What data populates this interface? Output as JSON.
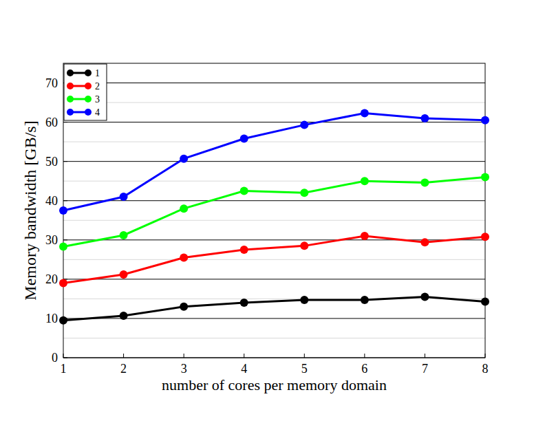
{
  "chart_data": {
    "type": "line",
    "x_label": "number of cores per memory domain",
    "y_label": "Memory bandwidth [GB/s]",
    "x": [
      1,
      2,
      3,
      4,
      5,
      6,
      7,
      8
    ],
    "series": [
      {
        "name": "1",
        "color": "#000000",
        "values": [
          9.5,
          10.7,
          13,
          14,
          14.7,
          14.7,
          15.5,
          14.3
        ]
      },
      {
        "name": "2",
        "color": "#ff0000",
        "values": [
          19,
          21.2,
          25.5,
          27.5,
          28.5,
          31,
          29.4,
          30.8
        ]
      },
      {
        "name": "3",
        "color": "#00ff00",
        "values": [
          28.3,
          31.2,
          38,
          42.5,
          42,
          45,
          44.6,
          46
        ]
      },
      {
        "name": "4",
        "color": "#0000ff",
        "values": [
          37.5,
          41,
          50.7,
          55.8,
          59.3,
          62.3,
          61,
          60.5
        ]
      }
    ],
    "xlim": [
      1,
      8
    ],
    "xticks": [
      1,
      2,
      3,
      4,
      5,
      6,
      7,
      8
    ],
    "ylim": [
      0,
      75
    ],
    "yticks": [
      0,
      10,
      20,
      30,
      40,
      50,
      60,
      70
    ],
    "grid": true,
    "legend": "upper left",
    "marker": "circle",
    "line_style": "solid"
  }
}
